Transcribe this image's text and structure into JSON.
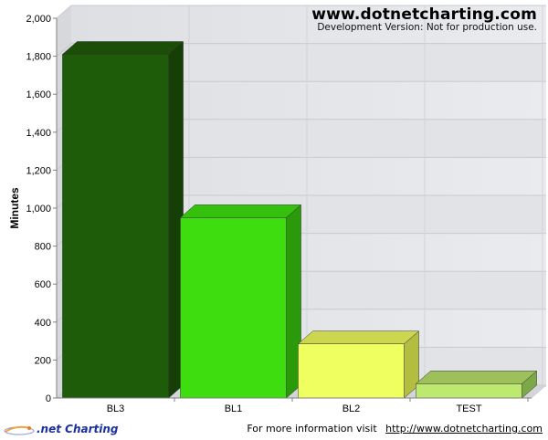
{
  "watermark": {
    "title": "www.dotnetcharting.com",
    "subtitle": "Development Version: Not for production use."
  },
  "footer": {
    "logo_text": ".net Charting",
    "info_text": "For more information visit",
    "link_text": "http://www.dotnetcharting.com"
  },
  "chart_data": {
    "type": "bar",
    "categories": [
      "BL3",
      "BL1",
      "BL2",
      "TEST"
    ],
    "values": [
      1810,
      950,
      285,
      75
    ],
    "ylabel": "Minutes",
    "xlabel": "",
    "ylim": [
      0,
      2000
    ],
    "ytick_step": 200,
    "yticks": [
      "0",
      "200",
      "400",
      "600",
      "800",
      "1,000",
      "1,200",
      "1,400",
      "1,600",
      "1,800",
      "2,000"
    ],
    "grid": true,
    "colors": [
      {
        "front": "#1f5c0a",
        "side": "#153f06",
        "top": "#1b4f08"
      },
      {
        "front": "#3ddd10",
        "side": "#2a9a0b",
        "top": "#34c00d"
      },
      {
        "front": "#f0ff60",
        "side": "#b3bd3f",
        "top": "#cdd64f"
      },
      {
        "front": "#bde96f",
        "side": "#7da848",
        "top": "#9ec05a"
      }
    ]
  }
}
